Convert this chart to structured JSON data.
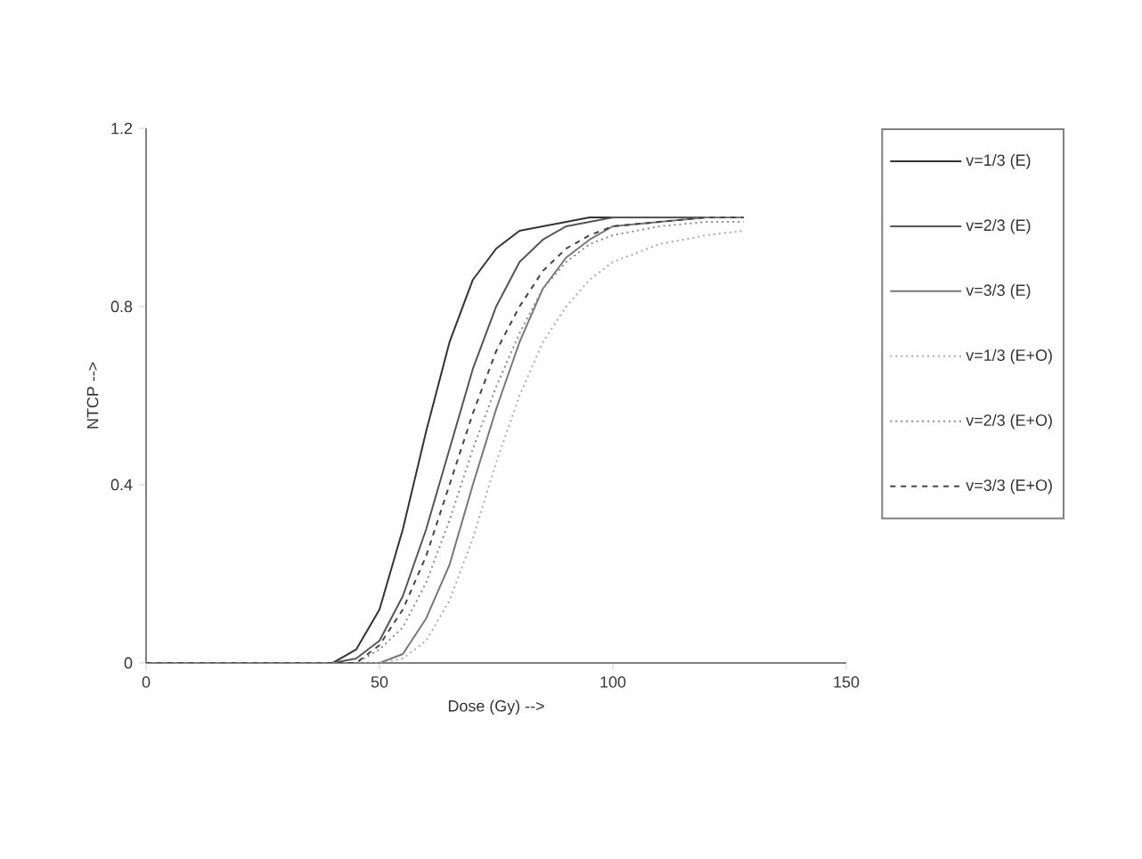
{
  "chart_data": {
    "type": "line",
    "xlabel": "Dose (Gy) -->",
    "ylabel": "NTCP -->",
    "xlim": [
      0,
      150
    ],
    "xticks": [
      0,
      50,
      100,
      150
    ],
    "ylim": [
      0,
      1.2
    ],
    "yticks": [
      0,
      0.4,
      0.8,
      1.2
    ],
    "legend": "right",
    "marker": "none",
    "grid": false,
    "series": [
      {
        "name": "v=1/3 (E)",
        "color": "#333333",
        "line_style": "solid",
        "x": [
          0,
          40,
          45,
          50,
          55,
          60,
          65,
          70,
          75,
          80,
          85,
          90,
          95,
          100,
          110,
          120,
          128
        ],
        "values": [
          0,
          0,
          0.03,
          0.12,
          0.3,
          0.52,
          0.72,
          0.86,
          0.93,
          0.97,
          0.98,
          0.99,
          1,
          1,
          1,
          1,
          1
        ]
      },
      {
        "name": "v=2/3 (E)",
        "color": "#555555",
        "line_style": "solid",
        "x": [
          0,
          40,
          45,
          50,
          55,
          60,
          65,
          70,
          75,
          80,
          85,
          90,
          95,
          100,
          110,
          120,
          128
        ],
        "values": [
          0,
          0,
          0.01,
          0.05,
          0.15,
          0.3,
          0.48,
          0.66,
          0.8,
          0.9,
          0.95,
          0.98,
          0.99,
          1,
          1,
          1,
          1
        ]
      },
      {
        "name": "v=3/3 (E)",
        "color": "#777777",
        "line_style": "solid",
        "x": [
          0,
          50,
          55,
          60,
          65,
          70,
          75,
          80,
          85,
          90,
          95,
          100,
          110,
          120,
          128
        ],
        "values": [
          0,
          0,
          0.02,
          0.1,
          0.22,
          0.4,
          0.57,
          0.72,
          0.84,
          0.91,
          0.95,
          0.98,
          0.99,
          1,
          1
        ]
      },
      {
        "name": "v=1/3 (E+O)",
        "color": "#aaaaaa",
        "line_style": "dotted",
        "x": [
          0,
          50,
          55,
          60,
          65,
          70,
          75,
          80,
          85,
          90,
          95,
          100,
          110,
          120,
          128
        ],
        "values": [
          0,
          0,
          0.01,
          0.05,
          0.14,
          0.28,
          0.45,
          0.6,
          0.72,
          0.8,
          0.86,
          0.9,
          0.94,
          0.96,
          0.97
        ]
      },
      {
        "name": "v=2/3 (E+O)",
        "color": "#888888",
        "line_style": "dotted",
        "x": [
          0,
          45,
          50,
          55,
          60,
          65,
          70,
          75,
          80,
          85,
          90,
          95,
          100,
          110,
          120,
          128
        ],
        "values": [
          0,
          0,
          0.03,
          0.08,
          0.18,
          0.32,
          0.48,
          0.62,
          0.74,
          0.84,
          0.9,
          0.94,
          0.96,
          0.98,
          0.99,
          0.99
        ]
      },
      {
        "name": "v=3/3 (E+O)",
        "color": "#444444",
        "line_style": "dashed",
        "x": [
          0,
          45,
          50,
          55,
          60,
          65,
          70,
          75,
          80,
          85,
          90,
          95,
          100,
          110,
          120,
          128
        ],
        "values": [
          0,
          0,
          0.04,
          0.12,
          0.24,
          0.4,
          0.56,
          0.7,
          0.8,
          0.88,
          0.93,
          0.96,
          0.98,
          0.99,
          1,
          1
        ]
      }
    ]
  }
}
